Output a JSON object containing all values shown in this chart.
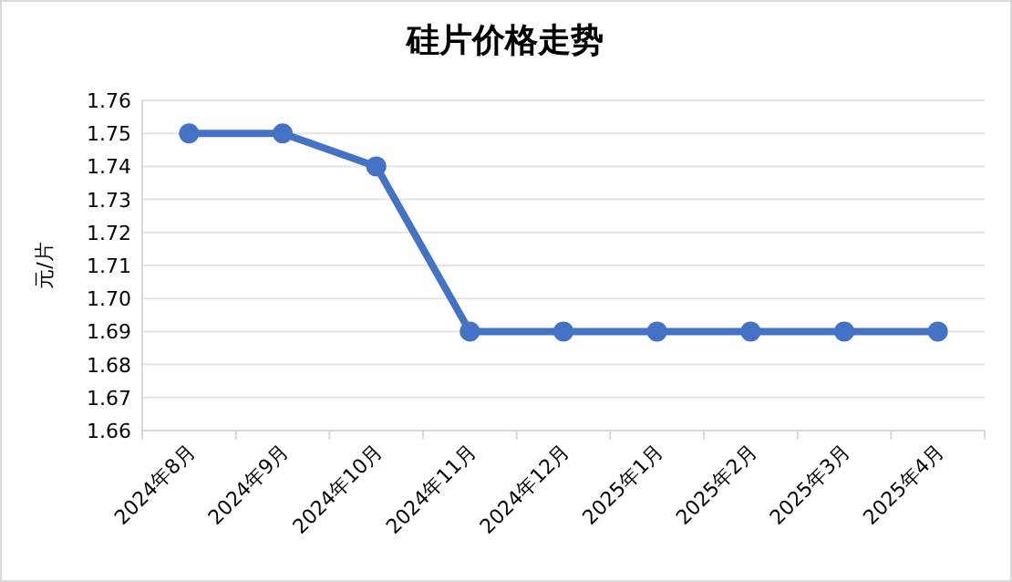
{
  "chart_data": {
    "type": "line",
    "title": "硅片价格走势",
    "ylabel": "元/片",
    "categories": [
      "2024年8月",
      "2024年9月",
      "2024年10月",
      "2024年11月",
      "2024年12月",
      "2025年1月",
      "2025年2月",
      "2025年3月",
      "2025年4月"
    ],
    "series": [
      {
        "color": "#4472c4",
        "values": [
          1.75,
          1.75,
          1.74,
          1.69,
          1.69,
          1.69,
          1.69,
          1.69,
          1.69
        ]
      }
    ],
    "ylim": [
      1.66,
      1.76
    ],
    "yticks": [
      1.66,
      1.67,
      1.68,
      1.69,
      {
        "value": 1.7,
        "label": "1.70"
      },
      1.71,
      1.72,
      1.73,
      1.74,
      1.75,
      1.76
    ],
    "grid": "y",
    "marker": "circle",
    "line_style": "solid"
  }
}
